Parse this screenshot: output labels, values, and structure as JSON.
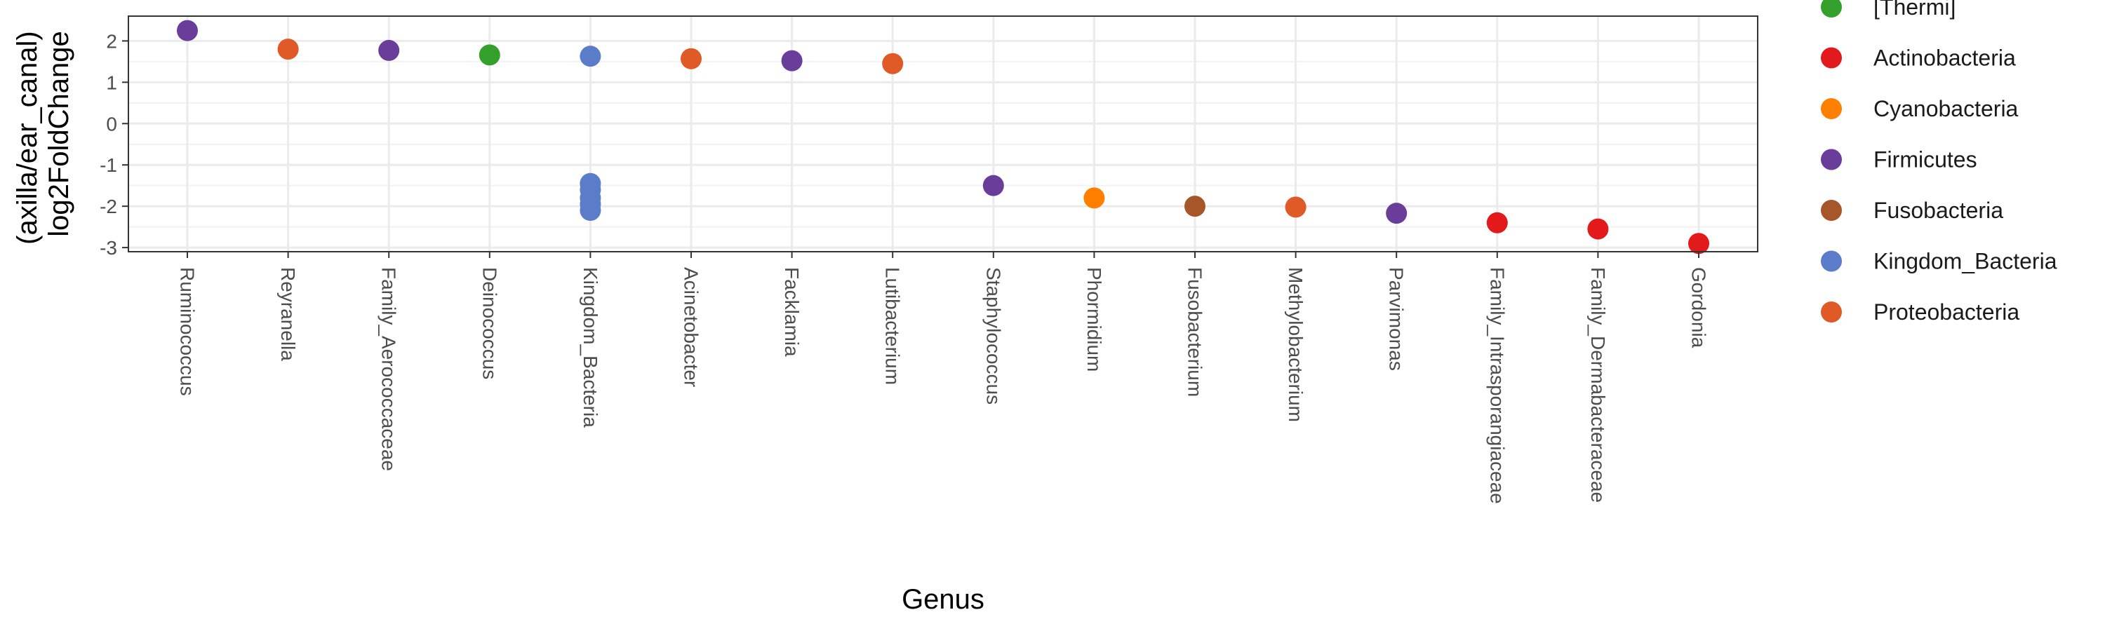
{
  "chart_data": {
    "type": "scatter",
    "xlabel": "Genus",
    "ylabel_lines": [
      "(axilla/ear_canal)",
      "log2FoldChange"
    ],
    "ylim": [
      -3.1,
      2.6
    ],
    "yticks": [
      -3,
      -2,
      -1,
      0,
      1,
      2
    ],
    "ytick_labels": [
      "-3",
      "-2",
      "-1",
      "0",
      "1",
      "2"
    ],
    "grid": true,
    "legend_position": "right",
    "categories": [
      "Ruminococcus",
      "Reyranella",
      "Family_Aerococcaceae",
      "Deinococcus",
      "Kingdom_Bacteria",
      "Acinetobacter",
      "Facklamia",
      "Lutibacterium",
      "Staphylococcus",
      "Phormidium",
      "Fusobacterium",
      "Methylobacterium",
      "Parvimonas",
      "Family_Intrasporangiaceae",
      "Family_Dermabacteraceae",
      "Gordonia"
    ],
    "phyla": [
      {
        "name": "[Thermi]",
        "color": "#33a02c"
      },
      {
        "name": "Actinobacteria",
        "color": "#e31a1c"
      },
      {
        "name": "Cyanobacteria",
        "color": "#ff7f00"
      },
      {
        "name": "Firmicutes",
        "color": "#6a3d9a"
      },
      {
        "name": "Fusobacteria",
        "color": "#a65628"
      },
      {
        "name": "Kingdom_Bacteria",
        "color": "#5b7cc9"
      },
      {
        "name": "Proteobacteria",
        "color": "#e05a28"
      }
    ],
    "points": [
      {
        "genus": "Ruminococcus",
        "phylum": "Firmicutes",
        "y": 2.25
      },
      {
        "genus": "Reyranella",
        "phylum": "Proteobacteria",
        "y": 1.8
      },
      {
        "genus": "Family_Aerococcaceae",
        "phylum": "Firmicutes",
        "y": 1.77
      },
      {
        "genus": "Deinococcus",
        "phylum": "[Thermi]",
        "y": 1.66
      },
      {
        "genus": "Kingdom_Bacteria",
        "phylum": "Kingdom_Bacteria",
        "y": 1.63
      },
      {
        "genus": "Kingdom_Bacteria",
        "phylum": "Kingdom_Bacteria",
        "y": -1.45
      },
      {
        "genus": "Kingdom_Bacteria",
        "phylum": "Kingdom_Bacteria",
        "y": -1.6
      },
      {
        "genus": "Kingdom_Bacteria",
        "phylum": "Kingdom_Bacteria",
        "y": -1.8
      },
      {
        "genus": "Kingdom_Bacteria",
        "phylum": "Kingdom_Bacteria",
        "y": -1.95
      },
      {
        "genus": "Kingdom_Bacteria",
        "phylum": "Kingdom_Bacteria",
        "y": -2.1
      },
      {
        "genus": "Acinetobacter",
        "phylum": "Proteobacteria",
        "y": 1.57
      },
      {
        "genus": "Facklamia",
        "phylum": "Firmicutes",
        "y": 1.52
      },
      {
        "genus": "Lutibacterium",
        "phylum": "Proteobacteria",
        "y": 1.45
      },
      {
        "genus": "Staphylococcus",
        "phylum": "Firmicutes",
        "y": -1.5
      },
      {
        "genus": "Phormidium",
        "phylum": "Cyanobacteria",
        "y": -1.8
      },
      {
        "genus": "Fusobacterium",
        "phylum": "Fusobacteria",
        "y": -2.0
      },
      {
        "genus": "Methylobacterium",
        "phylum": "Proteobacteria",
        "y": -2.02
      },
      {
        "genus": "Parvimonas",
        "phylum": "Firmicutes",
        "y": -2.17
      },
      {
        "genus": "Family_Intrasporangiaceae",
        "phylum": "Actinobacteria",
        "y": -2.4
      },
      {
        "genus": "Family_Dermabacteraceae",
        "phylum": "Actinobacteria",
        "y": -2.55
      },
      {
        "genus": "Gordonia",
        "phylum": "Actinobacteria",
        "y": -2.9
      }
    ]
  }
}
